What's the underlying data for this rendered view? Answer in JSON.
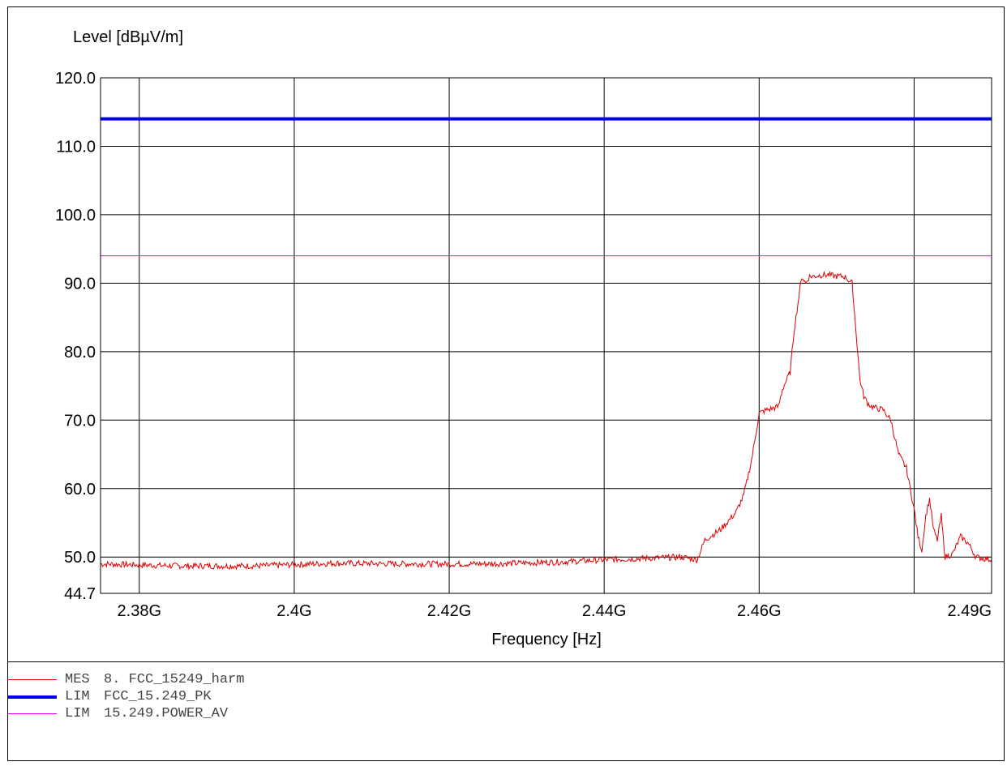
{
  "chart_data": {
    "type": "line",
    "ylabel": "Level [dBµV/m]",
    "xlabel": "Frequency [Hz]",
    "xlim": [
      2375000000,
      2490000000
    ],
    "ylim": [
      44.7,
      120.0
    ],
    "grid": true,
    "x_ticks": [
      {
        "value": 2380000000,
        "label": "2.38G"
      },
      {
        "value": 2400000000,
        "label": "2.4G"
      },
      {
        "value": 2420000000,
        "label": "2.42G"
      },
      {
        "value": 2440000000,
        "label": "2.44G"
      },
      {
        "value": 2460000000,
        "label": "2.46G"
      },
      {
        "value": 2480000000,
        "label": ""
      }
    ],
    "x_end_label": "2.49G",
    "y_ticks": [
      {
        "value": 120.0,
        "label": "120.0"
      },
      {
        "value": 110.0,
        "label": "110.0"
      },
      {
        "value": 100.0,
        "label": "100.0"
      },
      {
        "value": 90.0,
        "label": "90.0"
      },
      {
        "value": 80.0,
        "label": "80.0"
      },
      {
        "value": 70.0,
        "label": "70.0"
      },
      {
        "value": 60.0,
        "label": "60.0"
      },
      {
        "value": 50.0,
        "label": "50.0"
      },
      {
        "value": 44.7,
        "label": "44.7"
      }
    ],
    "series": [
      {
        "name": "FCC_15249_harm",
        "color": "#e00000",
        "width": 1,
        "x": [
          2375000000,
          2385000000,
          2395000000,
          2405000000,
          2415000000,
          2425000000,
          2435000000,
          2440000000,
          2445000000,
          2450000000,
          2452000000,
          2453000000,
          2455000000,
          2457000000,
          2458000000,
          2459000000,
          2460000000,
          2461000000,
          2462000000,
          2462500000,
          2463000000,
          2464000000,
          2464500000,
          2465000000,
          2465500000,
          2466000000,
          2466500000,
          2467000000,
          2468000000,
          2469000000,
          2470000000,
          2471000000,
          2472000000,
          2473000000,
          2473500000,
          2474000000,
          2474500000,
          2475000000,
          2476000000,
          2477000000,
          2478000000,
          2479000000,
          2480000000,
          2480500000,
          2481000000,
          2481500000,
          2482000000,
          2482500000,
          2483000000,
          2483500000,
          2484000000,
          2485000000,
          2486000000,
          2487000000,
          2488000000,
          2489000000,
          2490000000
        ],
        "values": [
          49.0,
          48.7,
          48.7,
          49.1,
          49.0,
          49.0,
          49.3,
          49.6,
          49.8,
          50.0,
          49.6,
          52.5,
          54.0,
          56.5,
          59.0,
          64.0,
          71.0,
          71.5,
          71.8,
          72.0,
          74.5,
          77.0,
          83.0,
          87.0,
          91.0,
          90.0,
          91.0,
          91.0,
          91.2,
          91.2,
          91.0,
          91.0,
          90.0,
          76.0,
          73.5,
          72.5,
          72.0,
          71.8,
          71.5,
          70.0,
          65.0,
          63.0,
          57.0,
          53.0,
          51.0,
          56.0,
          58.5,
          54.0,
          52.5,
          56.0,
          50.0,
          50.5,
          53.0,
          52.0,
          50.0,
          49.8,
          49.6
        ]
      },
      {
        "name": "FCC_15.249_PK",
        "color": "#0000ee",
        "width": 4,
        "x": [
          2375000000,
          2490000000
        ],
        "values": [
          114.0,
          114.0
        ]
      },
      {
        "name": "15.249.POWER_AV",
        "color": "#ee00ee",
        "width": 1,
        "x": [
          2375000000,
          2490000000
        ],
        "values": [
          94.0,
          94.0
        ]
      }
    ]
  },
  "legend": [
    {
      "kind": "MES",
      "text": "8. FCC_15249_harm",
      "color": "#e00000",
      "width": 1
    },
    {
      "kind": "LIM",
      "text": "FCC_15.249_PK",
      "color": "#0000ee",
      "width": 4
    },
    {
      "kind": "LIM",
      "text": "15.249.POWER_AV",
      "color": "#ee00ee",
      "width": 1
    }
  ]
}
